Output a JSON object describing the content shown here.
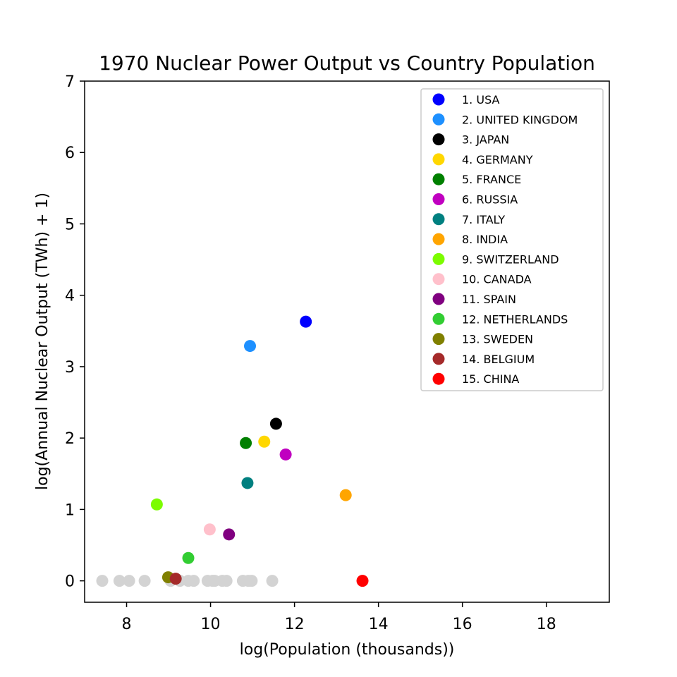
{
  "chart_data": {
    "type": "scatter",
    "title": "1970 Nuclear Power Output vs Country Population",
    "xlabel": "log(Population (thousands))",
    "ylabel": "log(Annual Nuclear Output (TWh) + 1)",
    "xlim": [
      7.0,
      19.5
    ],
    "ylim": [
      -0.3,
      7.0
    ],
    "xticks": [
      8,
      10,
      12,
      14,
      16,
      18
    ],
    "yticks": [
      0,
      1,
      2,
      3,
      4,
      5,
      6,
      7
    ],
    "grid": false,
    "legend_position": "top-right",
    "series": [
      {
        "name": "1. USA",
        "color": "#0000ff",
        "points": [
          {
            "x": 12.27,
            "y": 3.63
          }
        ]
      },
      {
        "name": "2. UNITED KINGDOM",
        "color": "#1e90ff",
        "points": [
          {
            "x": 10.94,
            "y": 3.29
          }
        ]
      },
      {
        "name": "3. JAPAN",
        "color": "#000000",
        "points": [
          {
            "x": 11.56,
            "y": 2.2
          }
        ]
      },
      {
        "name": "4. GERMANY",
        "color": "#ffd700",
        "points": [
          {
            "x": 11.28,
            "y": 1.95
          }
        ]
      },
      {
        "name": "5. FRANCE",
        "color": "#008000",
        "points": [
          {
            "x": 10.84,
            "y": 1.93
          }
        ]
      },
      {
        "name": "6. RUSSIA",
        "color": "#c000c0",
        "points": [
          {
            "x": 11.79,
            "y": 1.77
          }
        ]
      },
      {
        "name": "7. ITALY",
        "color": "#008080",
        "points": [
          {
            "x": 10.88,
            "y": 1.37
          }
        ]
      },
      {
        "name": "8. INDIA",
        "color": "#ffa500",
        "points": [
          {
            "x": 13.22,
            "y": 1.2
          }
        ]
      },
      {
        "name": "9. SWITZERLAND",
        "color": "#7cfc00",
        "points": [
          {
            "x": 8.72,
            "y": 1.07
          }
        ]
      },
      {
        "name": "10. CANADA",
        "color": "#ffc0cb",
        "points": [
          {
            "x": 9.98,
            "y": 0.72
          }
        ]
      },
      {
        "name": "11. SPAIN",
        "color": "#800080",
        "points": [
          {
            "x": 10.44,
            "y": 0.65
          }
        ]
      },
      {
        "name": "12. NETHERLANDS",
        "color": "#32cd32",
        "points": [
          {
            "x": 9.47,
            "y": 0.32
          }
        ]
      },
      {
        "name": "13. SWEDEN",
        "color": "#808000",
        "points": [
          {
            "x": 8.99,
            "y": 0.05
          }
        ]
      },
      {
        "name": "14. BELGIUM",
        "color": "#a52a2a",
        "points": [
          {
            "x": 9.17,
            "y": 0.03
          }
        ]
      },
      {
        "name": "15. CHINA",
        "color": "#ff0000",
        "points": [
          {
            "x": 13.62,
            "y": 0.0
          }
        ]
      }
    ],
    "others": {
      "color": "#d3d3d3",
      "points": [
        {
          "x": 7.42,
          "y": 0
        },
        {
          "x": 7.83,
          "y": 0
        },
        {
          "x": 8.06,
          "y": 0
        },
        {
          "x": 8.43,
          "y": 0
        },
        {
          "x": 9.05,
          "y": 0
        },
        {
          "x": 9.27,
          "y": 0
        },
        {
          "x": 9.47,
          "y": 0
        },
        {
          "x": 9.6,
          "y": 0
        },
        {
          "x": 9.93,
          "y": 0
        },
        {
          "x": 10.05,
          "y": 0
        },
        {
          "x": 10.1,
          "y": 0
        },
        {
          "x": 10.28,
          "y": 0
        },
        {
          "x": 10.38,
          "y": 0
        },
        {
          "x": 10.77,
          "y": 0
        },
        {
          "x": 10.9,
          "y": 0
        },
        {
          "x": 10.98,
          "y": 0
        },
        {
          "x": 11.47,
          "y": 0
        }
      ]
    }
  }
}
